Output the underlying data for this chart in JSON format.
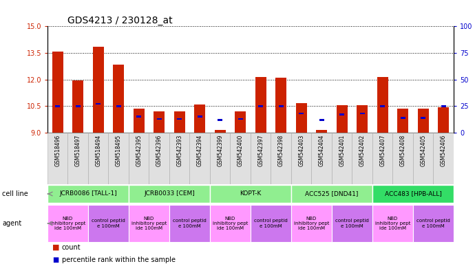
{
  "title": "GDS4213 / 230128_at",
  "samples": [
    "GSM518496",
    "GSM518497",
    "GSM518494",
    "GSM518495",
    "GSM542395",
    "GSM542396",
    "GSM542393",
    "GSM542394",
    "GSM542399",
    "GSM542400",
    "GSM542397",
    "GSM542398",
    "GSM542403",
    "GSM542404",
    "GSM542401",
    "GSM542402",
    "GSM542407",
    "GSM542408",
    "GSM542405",
    "GSM542406"
  ],
  "red_values": [
    13.55,
    11.95,
    13.82,
    12.82,
    10.35,
    10.2,
    10.2,
    10.6,
    9.15,
    10.2,
    12.15,
    12.1,
    10.65,
    9.15,
    10.55,
    10.55,
    12.15,
    10.35,
    10.35,
    10.45
  ],
  "blue_values": [
    25,
    25,
    27,
    25,
    15,
    13,
    13,
    15,
    12,
    13,
    25,
    25,
    18,
    12,
    17,
    18,
    25,
    14,
    14,
    25
  ],
  "ylim_left": [
    9,
    15
  ],
  "ylim_right": [
    0,
    100
  ],
  "yticks_left": [
    9,
    10.5,
    12,
    13.5,
    15
  ],
  "yticks_right": [
    0,
    25,
    50,
    75,
    100
  ],
  "cell_groups": [
    {
      "label": "JCRB0086 [TALL-1]",
      "start": 0,
      "end": 3,
      "color": "#90EE90"
    },
    {
      "label": "JCRB0033 [CEM]",
      "start": 4,
      "end": 7,
      "color": "#90EE90"
    },
    {
      "label": "KOPT-K",
      "start": 8,
      "end": 11,
      "color": "#90EE90"
    },
    {
      "label": "ACC525 [DND41]",
      "start": 12,
      "end": 15,
      "color": "#90EE90"
    },
    {
      "label": "ACC483 [HPB-ALL]",
      "start": 16,
      "end": 19,
      "color": "#33DD66"
    }
  ],
  "agent_groups": [
    {
      "label": "NBD\ninhibitory pept\nide 100mM",
      "start": 0,
      "end": 1,
      "color": "#FF99FF"
    },
    {
      "label": "control peptid\ne 100mM",
      "start": 2,
      "end": 3,
      "color": "#CC77EE"
    },
    {
      "label": "NBD\ninhibitory pept\nide 100mM",
      "start": 4,
      "end": 5,
      "color": "#FF99FF"
    },
    {
      "label": "control peptid\ne 100mM",
      "start": 6,
      "end": 7,
      "color": "#CC77EE"
    },
    {
      "label": "NBD\ninhibitory pept\nide 100mM",
      "start": 8,
      "end": 9,
      "color": "#FF99FF"
    },
    {
      "label": "control peptid\ne 100mM",
      "start": 10,
      "end": 11,
      "color": "#CC77EE"
    },
    {
      "label": "NBD\ninhibitory pept\nide 100mM",
      "start": 12,
      "end": 13,
      "color": "#FF99FF"
    },
    {
      "label": "control peptid\ne 100mM",
      "start": 14,
      "end": 15,
      "color": "#CC77EE"
    },
    {
      "label": "NBD\ninhibitory pept\nide 100mM",
      "start": 16,
      "end": 17,
      "color": "#FF99FF"
    },
    {
      "label": "control peptid\ne 100mM",
      "start": 18,
      "end": 19,
      "color": "#CC77EE"
    }
  ],
  "bar_color_red": "#CC2200",
  "bar_color_blue": "#0000CC",
  "bar_width": 0.55,
  "tick_label_color_left": "#CC2200",
  "tick_label_color_right": "#0000CC",
  "title_fontsize": 10,
  "tick_fontsize": 7,
  "sample_fontsize": 5.5,
  "cell_fontsize": 6.5,
  "agent_fontsize": 5.0,
  "legend_fontsize": 7
}
